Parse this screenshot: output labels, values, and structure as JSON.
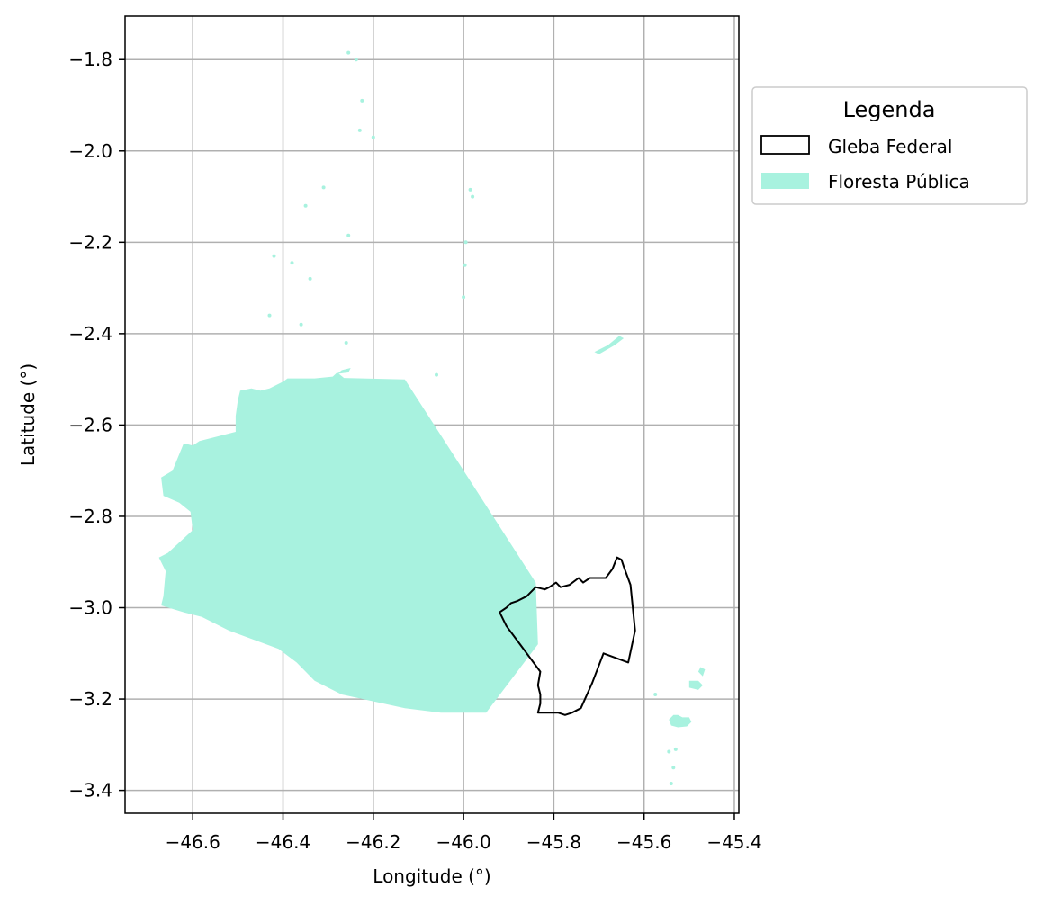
{
  "chart_data": {
    "type": "map",
    "xlabel": "Longitude (°)",
    "ylabel": "Latitude (°)",
    "xlim": [
      -46.75,
      -45.39
    ],
    "ylim": [
      -3.45,
      -1.705
    ],
    "xticks": [
      -46.6,
      -46.4,
      -46.2,
      -46.0,
      -45.8,
      -45.6,
      -45.4
    ],
    "xtick_labels": [
      "−46.6",
      "−46.4",
      "−46.2",
      "−46.0",
      "−45.8",
      "−45.6",
      "−45.4"
    ],
    "yticks": [
      -1.8,
      -2.0,
      -2.2,
      -2.4,
      -2.6,
      -2.8,
      -3.0,
      -3.2,
      -3.4
    ],
    "ytick_labels": [
      "−1.8",
      "−2.0",
      "−2.2",
      "−2.4",
      "−2.6",
      "−2.8",
      "−3.0",
      "−3.2",
      "−3.4"
    ],
    "grid": true,
    "legend": {
      "title": "Legenda",
      "placement": "upper-right-outside",
      "entries": [
        {
          "label": "Gleba Federal",
          "style": "outline",
          "color": "#000000"
        },
        {
          "label": "Floresta Pública",
          "style": "fill",
          "color": "#a8f2df"
        }
      ]
    },
    "layers": [
      {
        "name": "Floresta Pública",
        "color": "#a8f2df",
        "polygons": [
          [
            [
              -46.13,
              -2.5
            ],
            [
              -45.84,
              -2.945
            ],
            [
              -45.835,
              -3.08
            ],
            [
              -45.95,
              -3.23
            ],
            [
              -46.05,
              -3.23
            ],
            [
              -46.13,
              -3.22
            ],
            [
              -46.27,
              -3.19
            ],
            [
              -46.33,
              -3.16
            ],
            [
              -46.37,
              -3.12
            ],
            [
              -46.41,
              -3.09
            ],
            [
              -46.52,
              -3.05
            ],
            [
              -46.58,
              -3.02
            ],
            [
              -46.62,
              -3.01
            ],
            [
              -46.67,
              -2.995
            ],
            [
              -46.665,
              -2.975
            ],
            [
              -46.66,
              -2.92
            ],
            [
              -46.675,
              -2.89
            ],
            [
              -46.655,
              -2.88
            ],
            [
              -46.6,
              -2.83
            ],
            [
              -46.605,
              -2.79
            ],
            [
              -46.63,
              -2.77
            ],
            [
              -46.665,
              -2.755
            ],
            [
              -46.67,
              -2.715
            ],
            [
              -46.645,
              -2.7
            ],
            [
              -46.62,
              -2.64
            ],
            [
              -46.6,
              -2.645
            ],
            [
              -46.585,
              -2.635
            ],
            [
              -46.545,
              -2.625
            ],
            [
              -46.505,
              -2.615
            ],
            [
              -46.505,
              -2.58
            ],
            [
              -46.5,
              -2.545
            ],
            [
              -46.495,
              -2.525
            ],
            [
              -46.47,
              -2.52
            ],
            [
              -46.45,
              -2.525
            ],
            [
              -46.43,
              -2.52
            ],
            [
              -46.4,
              -2.505
            ],
            [
              -46.39,
              -2.498
            ],
            [
              -46.33,
              -2.498
            ],
            [
              -46.29,
              -2.494
            ],
            [
              -46.28,
              -2.485
            ],
            [
              -46.265,
              -2.497
            ]
          ],
          [
            [
              -45.535,
              -3.235
            ],
            [
              -45.525,
              -3.235
            ],
            [
              -45.515,
              -3.24
            ],
            [
              -45.5,
              -3.24
            ],
            [
              -45.495,
              -3.25
            ],
            [
              -45.505,
              -3.26
            ],
            [
              -45.525,
              -3.262
            ],
            [
              -45.54,
              -3.258
            ],
            [
              -45.545,
              -3.245
            ]
          ],
          [
            [
              -45.5,
              -3.16
            ],
            [
              -45.48,
              -3.16
            ],
            [
              -45.47,
              -3.17
            ],
            [
              -45.48,
              -3.18
            ],
            [
              -45.5,
              -3.175
            ]
          ],
          [
            [
              -45.475,
              -3.13
            ],
            [
              -45.465,
              -3.135
            ],
            [
              -45.47,
              -3.15
            ],
            [
              -45.48,
              -3.14
            ]
          ],
          [
            [
              -45.71,
              -2.44
            ],
            [
              -45.68,
              -2.425
            ],
            [
              -45.655,
              -2.405
            ],
            [
              -45.645,
              -2.41
            ],
            [
              -45.665,
              -2.425
            ],
            [
              -45.7,
              -2.445
            ]
          ],
          [
            [
              -46.27,
              -2.48
            ],
            [
              -46.25,
              -2.475
            ],
            [
              -46.255,
              -2.485
            ],
            [
              -46.28,
              -2.488
            ]
          ]
        ],
        "specks": [
          [
            -46.255,
            -1.785
          ],
          [
            -46.238,
            -1.8
          ],
          [
            -46.225,
            -1.89
          ],
          [
            -46.23,
            -1.955
          ],
          [
            -46.2,
            -1.97
          ],
          [
            -46.31,
            -2.08
          ],
          [
            -46.35,
            -2.12
          ],
          [
            -46.255,
            -2.185
          ],
          [
            -45.995,
            -2.2
          ],
          [
            -45.997,
            -2.25
          ],
          [
            -46.0,
            -2.32
          ],
          [
            -46.42,
            -2.23
          ],
          [
            -46.38,
            -2.245
          ],
          [
            -46.34,
            -2.28
          ],
          [
            -46.43,
            -2.36
          ],
          [
            -46.36,
            -2.38
          ],
          [
            -46.26,
            -2.42
          ],
          [
            -46.06,
            -2.49
          ],
          [
            -46.6,
            -2.97
          ],
          [
            -46.63,
            -2.73
          ],
          [
            -46.545,
            -2.96
          ],
          [
            -45.575,
            -3.19
          ],
          [
            -45.53,
            -3.31
          ],
          [
            -45.535,
            -3.35
          ],
          [
            -45.54,
            -3.385
          ],
          [
            -45.545,
            -3.315
          ],
          [
            -45.985,
            -2.085
          ],
          [
            -45.98,
            -2.1
          ]
        ]
      },
      {
        "name": "Gleba Federal",
        "color": "#000000",
        "outline": [
          [
            -45.92,
            -3.01
          ],
          [
            -45.905,
            -3.0
          ],
          [
            -45.895,
            -2.99
          ],
          [
            -45.88,
            -2.985
          ],
          [
            -45.86,
            -2.975
          ],
          [
            -45.84,
            -2.955
          ],
          [
            -45.82,
            -2.96
          ],
          [
            -45.81,
            -2.955
          ],
          [
            -45.795,
            -2.945
          ],
          [
            -45.785,
            -2.955
          ],
          [
            -45.765,
            -2.95
          ],
          [
            -45.745,
            -2.935
          ],
          [
            -45.735,
            -2.945
          ],
          [
            -45.72,
            -2.935
          ],
          [
            -45.705,
            -2.935
          ],
          [
            -45.685,
            -2.935
          ],
          [
            -45.67,
            -2.915
          ],
          [
            -45.66,
            -2.89
          ],
          [
            -45.65,
            -2.895
          ],
          [
            -45.645,
            -2.91
          ],
          [
            -45.63,
            -2.95
          ],
          [
            -45.62,
            -3.05
          ],
          [
            -45.635,
            -3.12
          ],
          [
            -45.69,
            -3.1
          ],
          [
            -45.715,
            -3.165
          ],
          [
            -45.74,
            -3.22
          ],
          [
            -45.76,
            -3.23
          ],
          [
            -45.775,
            -3.235
          ],
          [
            -45.79,
            -3.23
          ],
          [
            -45.835,
            -3.23
          ],
          [
            -45.83,
            -3.21
          ],
          [
            -45.83,
            -3.19
          ],
          [
            -45.835,
            -3.17
          ],
          [
            -45.83,
            -3.14
          ],
          [
            -45.845,
            -3.12
          ],
          [
            -45.875,
            -3.08
          ],
          [
            -45.905,
            -3.04
          ],
          [
            -45.92,
            -3.01
          ]
        ]
      }
    ]
  }
}
